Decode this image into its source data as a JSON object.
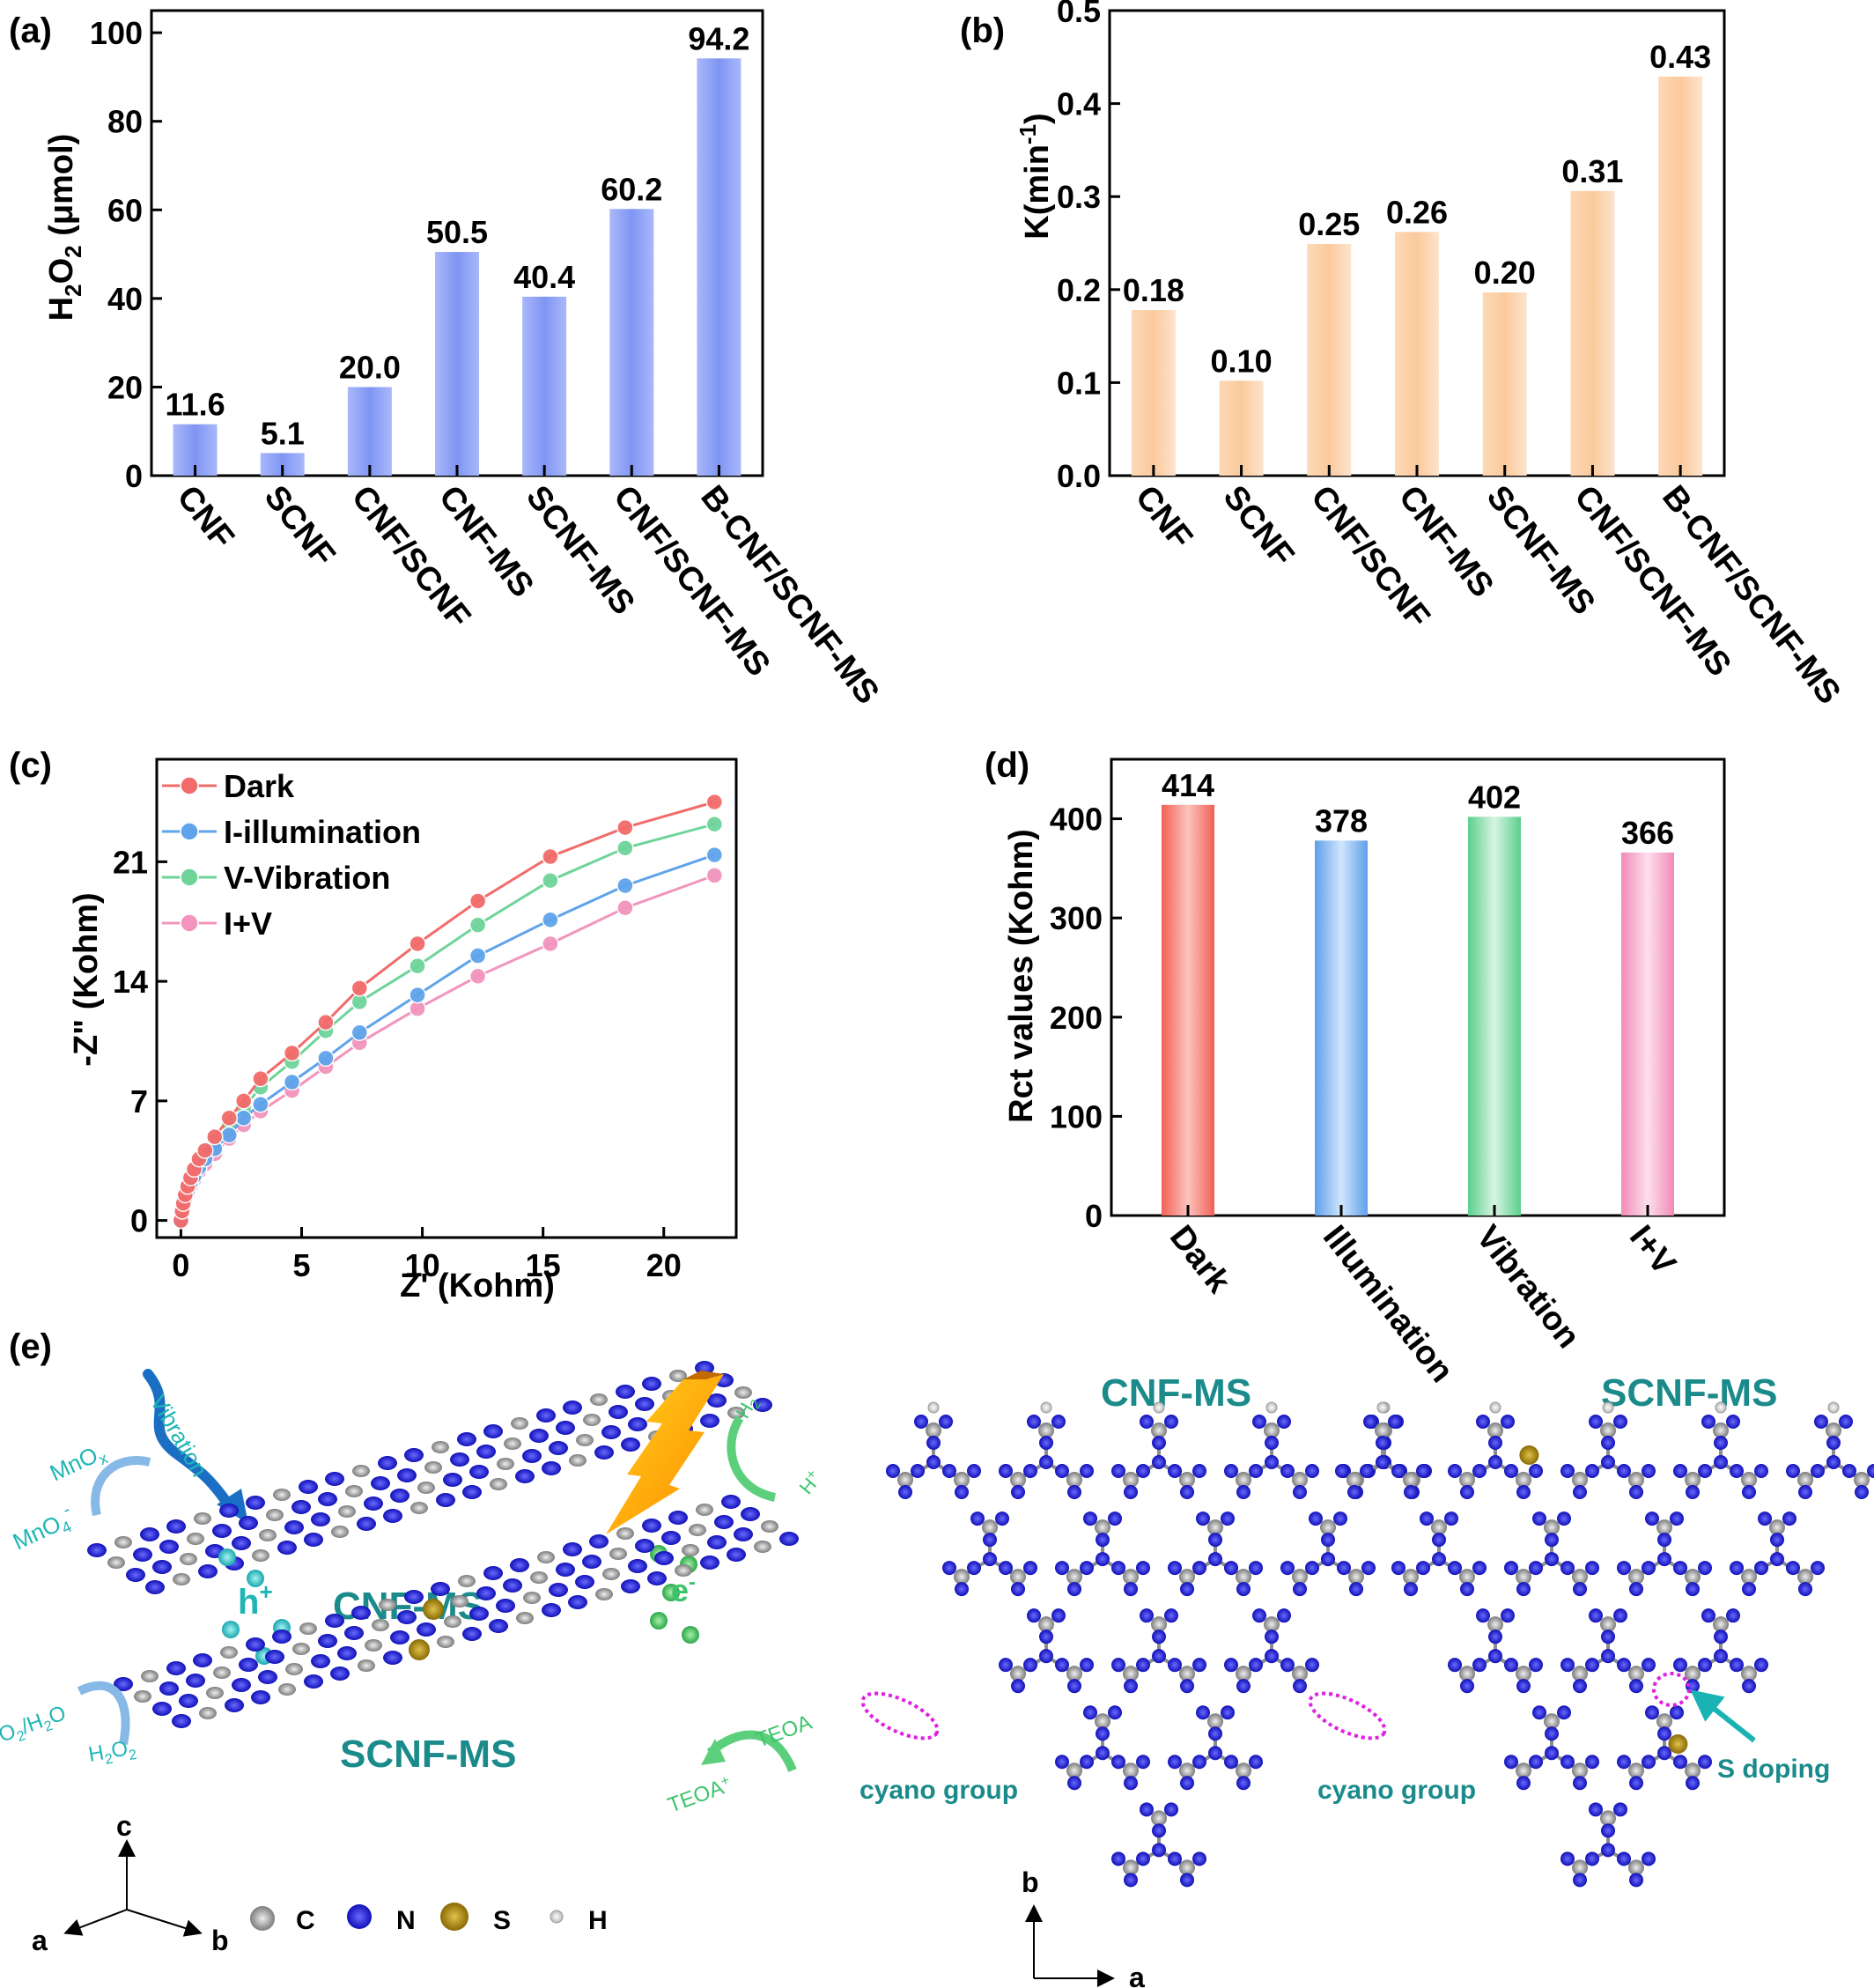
{
  "panels": [
    {
      "label": "(a)",
      "chart_data": {
        "type": "bar",
        "categories": [
          "CNF",
          "SCNF",
          "CNF/SCNF",
          "CNF-MS",
          "SCNF-MS",
          "CNF/SCNF-MS",
          "B-CNF/SCNF-MS"
        ],
        "values": [
          11.6,
          5.1,
          20.0,
          50.5,
          40.4,
          60.2,
          94.2
        ],
        "value_labels": [
          "11.6",
          "5.1",
          "20.0",
          "50.5",
          "40.4",
          "60.2",
          "94.2"
        ],
        "ylabel_main": "H",
        "ylabel_sub1": "2",
        "ylabel_mid": "O",
        "ylabel_sub2": "2",
        "ylabel_tail": " (μmol)",
        "ylim": [
          0,
          105
        ],
        "yticks": [
          0,
          20,
          40,
          60,
          80,
          100
        ],
        "ytick_labels": [
          "0",
          "20",
          "40",
          "60",
          "80",
          "100"
        ],
        "bar_color": "#8fa4f5",
        "grid": false
      }
    },
    {
      "label": "(b)",
      "chart_data": {
        "type": "bar",
        "categories": [
          "CNF",
          "SCNF",
          "CNF/SCNF",
          "CNF-MS",
          "SCNF-MS",
          "CNF/SCNF-MS",
          "B-CNF/SCNF-MS"
        ],
        "values": [
          0.178,
          0.102,
          0.249,
          0.262,
          0.197,
          0.306,
          0.429
        ],
        "value_labels": [
          "0.18",
          "0.10",
          "0.25",
          "0.26",
          "0.20",
          "0.31",
          "0.43"
        ],
        "ylabel_main": "K(min",
        "ylabel_sup": "-1",
        "ylabel_tail": ")",
        "ylim": [
          0,
          0.5
        ],
        "yticks": [
          0,
          0.1,
          0.2,
          0.3,
          0.4,
          0.5
        ],
        "ytick_labels": [
          "0.0",
          "0.1",
          "0.2",
          "0.3",
          "0.4",
          "0.5"
        ],
        "bar_color": "#fbd4b0",
        "grid": false
      }
    },
    {
      "label": "(c)",
      "chart_data": {
        "type": "line",
        "xlabel": "Z' (Kohm)",
        "ylabel": "-Z\" (Kohm)",
        "xlim": [
          -1,
          23
        ],
        "ylim": [
          -1,
          27
        ],
        "xticks": [
          0,
          5,
          10,
          15,
          20
        ],
        "xtick_labels": [
          "0",
          "5",
          "10",
          "15",
          "20"
        ],
        "yticks": [
          0,
          7,
          14,
          21
        ],
        "ytick_labels": [
          "0",
          "7",
          "14",
          "21"
        ],
        "legend_position": "top-left",
        "series": [
          {
            "name": "Dark",
            "color": "#f26b6b",
            "x": [
              0,
              0.05,
              0.1,
              0.18,
              0.28,
              0.4,
              0.55,
              0.75,
              1.0,
              1.4,
              2.0,
              2.6,
              3.3,
              4.6,
              6.0,
              7.4,
              9.8,
              12.3,
              15.3,
              18.4,
              22.1
            ],
            "y": [
              0,
              0.55,
              1.0,
              1.5,
              2.0,
              2.5,
              3.0,
              3.6,
              4.1,
              4.9,
              6.0,
              7.0,
              8.3,
              9.8,
              11.6,
              13.6,
              16.2,
              18.7,
              21.3,
              23.0,
              24.5
            ]
          },
          {
            "name": "I-illumination",
            "color": "#5fa3ea",
            "x": [
              0,
              0.05,
              0.1,
              0.18,
              0.28,
              0.4,
              0.55,
              0.75,
              1.0,
              1.4,
              2.0,
              2.6,
              3.3,
              4.6,
              6.0,
              7.4,
              9.8,
              12.3,
              15.3,
              18.4,
              22.1
            ],
            "y": [
              0,
              0.45,
              0.85,
              1.3,
              1.75,
              2.2,
              2.6,
              3.1,
              3.6,
              4.2,
              5.0,
              6.0,
              6.8,
              8.1,
              9.5,
              11.0,
              13.2,
              15.5,
              17.6,
              19.6,
              21.4
            ]
          },
          {
            "name": "V-Vibration",
            "color": "#6fd49a",
            "x": [
              0,
              0.05,
              0.1,
              0.18,
              0.28,
              0.4,
              0.55,
              0.75,
              1.0,
              1.4,
              2.0,
              2.6,
              3.3,
              4.6,
              6.0,
              7.4,
              9.8,
              12.3,
              15.3,
              18.4,
              22.1
            ],
            "y": [
              0,
              0.5,
              0.95,
              1.45,
              1.9,
              2.4,
              2.85,
              3.4,
              3.9,
              4.6,
              5.6,
              6.6,
              7.8,
              9.3,
              11.1,
              12.8,
              14.9,
              17.3,
              19.9,
              21.8,
              23.2
            ]
          },
          {
            "name": "I+V",
            "color": "#f294bd",
            "x": [
              0,
              0.05,
              0.1,
              0.18,
              0.28,
              0.4,
              0.55,
              0.75,
              1.0,
              1.4,
              2.0,
              2.6,
              3.3,
              4.6,
              6.0,
              7.4,
              9.8,
              12.3,
              15.3,
              18.4,
              22.1
            ],
            "y": [
              0,
              0.4,
              0.8,
              1.2,
              1.6,
              2.0,
              2.4,
              2.9,
              3.3,
              3.9,
              4.8,
              5.6,
              6.4,
              7.6,
              9.0,
              10.4,
              12.4,
              14.3,
              16.2,
              18.3,
              20.2
            ]
          }
        ]
      }
    },
    {
      "label": "(d)",
      "chart_data": {
        "type": "bar",
        "categories": [
          "Dark",
          "Illumination",
          "Vibration",
          "I+V"
        ],
        "values": [
          414,
          378,
          402,
          366
        ],
        "value_labels": [
          "414",
          "378",
          "402",
          "366"
        ],
        "bar_colors": [
          "#f27d72",
          "#7fb6ee",
          "#7fdca6",
          "#f4a5c8"
        ],
        "ylabel": "Rct values (Kohm)",
        "ylim": [
          0,
          460
        ],
        "yticks": [
          0,
          100,
          200,
          300,
          400
        ],
        "ytick_labels": [
          "0",
          "100",
          "200",
          "300",
          "400"
        ],
        "grid": false
      }
    }
  ],
  "panel_e": {
    "label": "(e)",
    "texts": {
      "vibration": "Vibration",
      "mnox": "MnO",
      "mnox_sub": "x",
      "mno4": "MnO",
      "mno4_sub": "4",
      "mno4_sup": "-",
      "hplus": "h",
      "hplus_sup": "+",
      "cnf_ms": "CNF-MS",
      "scnf_ms": "SCNF-MS",
      "eminus": "e",
      "eminus_sup": "-",
      "h2": "H",
      "h2_sub": "2",
      "hion": "H",
      "hion_sup": "+",
      "o2h2o": "O",
      "o2h2o_sub1": "2",
      "o2h2o_mid": "/H",
      "o2h2o_sub2": "2",
      "o2h2o_end": "O",
      "h2o2": "H",
      "h2o2_sub1": "2",
      "h2o2_mid": "O",
      "h2o2_sub2": "2",
      "teoa": "TEOA",
      "teoa_plus": "TEOA",
      "teoa_plus_sup": "+",
      "axis_c": "c",
      "axis_a": "a",
      "axis_b": "b",
      "legend_c": "C",
      "legend_n": "N",
      "legend_s": "S",
      "legend_h": "H",
      "struct_title_left": "CNF-MS",
      "struct_title_right": "SCNF-MS",
      "cyano_left": "cyano group",
      "cyano_right": "cyano group",
      "s_doping": "S doping",
      "axis2_b": "b",
      "axis2_a": "a"
    },
    "colors": {
      "title_teal": "#1a8a8a",
      "label_cyan": "#1fb5b5",
      "label_green": "#3cc46a",
      "carbon": "#9a9a9a",
      "nitrogen": "#1b1bd9",
      "sulfur": "#a8860b",
      "hydrogen": "#e8e8e8",
      "highlight_magenta": "#e020e0",
      "arrow_blue": "#1a6fc4"
    }
  }
}
